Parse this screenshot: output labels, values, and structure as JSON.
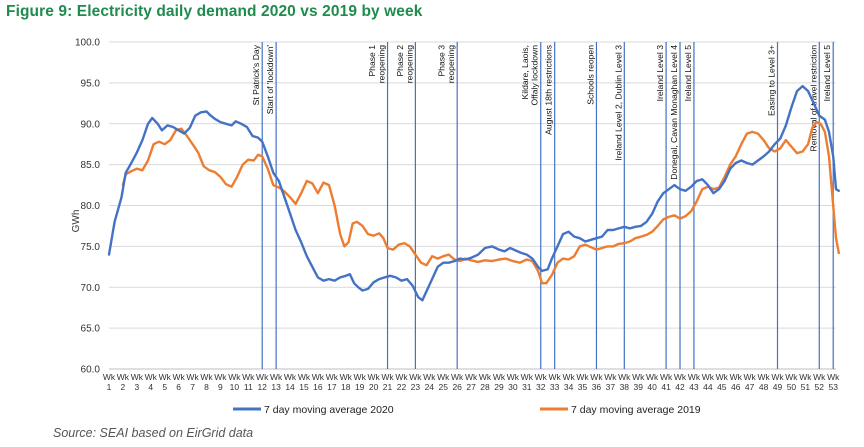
{
  "figure_title": "Figure 9:  Electricity daily demand 2020 vs 2019 by week",
  "source_note": "Source: SEAI based on EirGrid data",
  "colors": {
    "series_2020": "#4472c4",
    "series_2019": "#ed7d31",
    "title": "#1f8b4c",
    "marker_line": "#4472c4"
  },
  "chart_data": {
    "type": "line",
    "title": "Figure 9:  Electricity daily demand 2020 vs 2019 by week",
    "xlabel": "",
    "ylabel": "GWh",
    "ylim": [
      60,
      100
    ],
    "y_ticks": [
      "60.0",
      "65.0",
      "70.0",
      "75.0",
      "80.0",
      "85.0",
      "90.0",
      "95.0",
      "100.0"
    ],
    "x_prefix": "Wk",
    "x_weeks": [
      "1",
      "2",
      "3",
      "4",
      "5",
      "6",
      "7",
      "8",
      "9",
      "10",
      "11",
      "12",
      "13",
      "14",
      "15",
      "16",
      "17",
      "18",
      "19",
      "20",
      "21",
      "22",
      "23",
      "24",
      "25",
      "26",
      "27",
      "28",
      "29",
      "30",
      "31",
      "32",
      "33",
      "34",
      "35",
      "36",
      "37",
      "38",
      "39",
      "40",
      "41",
      "42",
      "43",
      "44",
      "45",
      "46",
      "47",
      "48",
      "49",
      "50",
      "51",
      "52",
      "53"
    ],
    "xlim": [
      1,
      53.2
    ],
    "legend_position": "bottom",
    "series": [
      {
        "name": "7 day moving average 2020",
        "color": "#4472c4",
        "points": [
          [
            1,
            74
          ],
          [
            1.4,
            78
          ],
          [
            1.9,
            81
          ],
          [
            2.2,
            84
          ],
          [
            2.6,
            85.2
          ],
          [
            3,
            86.5
          ],
          [
            3.4,
            88
          ],
          [
            3.8,
            90
          ],
          [
            4.1,
            90.7
          ],
          [
            4.5,
            90
          ],
          [
            4.8,
            89.2
          ],
          [
            5.2,
            89.8
          ],
          [
            5.6,
            89.6
          ],
          [
            6,
            89.2
          ],
          [
            6.4,
            88.8
          ],
          [
            6.8,
            89.5
          ],
          [
            7.2,
            91
          ],
          [
            7.6,
            91.4
          ],
          [
            8,
            91.5
          ],
          [
            8.3,
            91
          ],
          [
            8.6,
            90.6
          ],
          [
            9,
            90.2
          ],
          [
            9.4,
            90
          ],
          [
            9.8,
            89.8
          ],
          [
            10.1,
            90.3
          ],
          [
            10.5,
            90
          ],
          [
            10.9,
            89.6
          ],
          [
            11.3,
            88.5
          ],
          [
            11.7,
            88.3
          ],
          [
            12,
            87.8
          ],
          [
            12.4,
            86
          ],
          [
            12.8,
            84
          ],
          [
            13.2,
            83
          ],
          [
            13.6,
            81
          ],
          [
            14,
            79
          ],
          [
            14.4,
            77
          ],
          [
            14.8,
            75.5
          ],
          [
            15.2,
            73.8
          ],
          [
            15.6,
            72.5
          ],
          [
            16,
            71.2
          ],
          [
            16.4,
            70.8
          ],
          [
            16.8,
            71
          ],
          [
            17.2,
            70.8
          ],
          [
            17.6,
            71.2
          ],
          [
            18,
            71.4
          ],
          [
            18.3,
            71.6
          ],
          [
            18.6,
            70.5
          ],
          [
            18.9,
            70
          ],
          [
            19.2,
            69.6
          ],
          [
            19.6,
            69.8
          ],
          [
            20,
            70.6
          ],
          [
            20.4,
            71
          ],
          [
            20.8,
            71.2
          ],
          [
            21.2,
            71.4
          ],
          [
            21.6,
            71.2
          ],
          [
            22,
            70.8
          ],
          [
            22.4,
            71
          ],
          [
            22.8,
            70.2
          ],
          [
            23.2,
            68.8
          ],
          [
            23.5,
            68.4
          ],
          [
            23.8,
            69.5
          ],
          [
            24.2,
            71
          ],
          [
            24.6,
            72.5
          ],
          [
            25,
            73
          ],
          [
            25.4,
            73
          ],
          [
            25.8,
            73.2
          ],
          [
            26.2,
            73.5
          ],
          [
            26.6,
            73.4
          ],
          [
            27,
            73.6
          ],
          [
            27.5,
            74
          ],
          [
            28,
            74.8
          ],
          [
            28.5,
            75
          ],
          [
            29,
            74.6
          ],
          [
            29.4,
            74.4
          ],
          [
            29.8,
            74.8
          ],
          [
            30.2,
            74.5
          ],
          [
            30.6,
            74.2
          ],
          [
            31,
            74
          ],
          [
            31.4,
            73.5
          ],
          [
            31.8,
            72.5
          ],
          [
            32.1,
            72
          ],
          [
            32.5,
            72.2
          ],
          [
            32.8,
            73.5
          ],
          [
            33.2,
            75
          ],
          [
            33.6,
            76.5
          ],
          [
            34,
            76.8
          ],
          [
            34.4,
            76.2
          ],
          [
            34.8,
            76
          ],
          [
            35.2,
            75.6
          ],
          [
            35.6,
            75.8
          ],
          [
            36,
            76
          ],
          [
            36.4,
            76.2
          ],
          [
            36.8,
            77
          ],
          [
            37.2,
            77
          ],
          [
            37.6,
            77.2
          ],
          [
            38,
            77.4
          ],
          [
            38.4,
            77.2
          ],
          [
            38.8,
            77.4
          ],
          [
            39.2,
            77.5
          ],
          [
            39.6,
            78
          ],
          [
            40,
            79
          ],
          [
            40.4,
            80.5
          ],
          [
            40.8,
            81.5
          ],
          [
            41.2,
            82
          ],
          [
            41.6,
            82.5
          ],
          [
            42,
            82
          ],
          [
            42.4,
            81.8
          ],
          [
            42.8,
            82.3
          ],
          [
            43.2,
            83
          ],
          [
            43.6,
            83.2
          ],
          [
            44,
            82.5
          ],
          [
            44.4,
            81.5
          ],
          [
            44.8,
            82
          ],
          [
            45.2,
            83
          ],
          [
            45.6,
            84.5
          ],
          [
            46,
            85.2
          ],
          [
            46.4,
            85.5
          ],
          [
            46.8,
            85.2
          ],
          [
            47.2,
            85
          ],
          [
            47.6,
            85.5
          ],
          [
            48,
            86
          ],
          [
            48.4,
            86.6
          ],
          [
            48.8,
            87.5
          ],
          [
            49.2,
            88.2
          ],
          [
            49.6,
            89.8
          ],
          [
            50,
            92
          ],
          [
            50.4,
            94
          ],
          [
            50.8,
            94.6
          ],
          [
            51.2,
            94
          ],
          [
            51.6,
            92.5
          ],
          [
            52,
            91
          ],
          [
            52.4,
            90.5
          ],
          [
            52.7,
            89
          ],
          [
            53,
            86
          ],
          [
            53.2,
            82
          ],
          [
            53.4,
            81.8
          ]
        ]
      },
      {
        "name": "7 day moving average 2019",
        "color": "#ed7d31",
        "points": [
          [
            2,
            82.5
          ],
          [
            2.2,
            83.8
          ],
          [
            2.6,
            84.2
          ],
          [
            3,
            84.5
          ],
          [
            3.4,
            84.3
          ],
          [
            3.8,
            85.5
          ],
          [
            4.2,
            87.5
          ],
          [
            4.6,
            87.8
          ],
          [
            5,
            87.5
          ],
          [
            5.4,
            88
          ],
          [
            5.8,
            89.2
          ],
          [
            6.2,
            89.4
          ],
          [
            6.6,
            88.5
          ],
          [
            7,
            87.5
          ],
          [
            7.4,
            86.5
          ],
          [
            7.8,
            84.8
          ],
          [
            8.2,
            84.3
          ],
          [
            8.6,
            84.1
          ],
          [
            9,
            83.5
          ],
          [
            9.4,
            82.6
          ],
          [
            9.8,
            82.3
          ],
          [
            10.2,
            83.5
          ],
          [
            10.6,
            85
          ],
          [
            11,
            85.6
          ],
          [
            11.4,
            85.5
          ],
          [
            11.7,
            86.2
          ],
          [
            12,
            86
          ],
          [
            12.4,
            84.5
          ],
          [
            12.8,
            82.5
          ],
          [
            13.2,
            82.2
          ],
          [
            13.6,
            81.7
          ],
          [
            14,
            81
          ],
          [
            14.4,
            80.2
          ],
          [
            14.8,
            81.5
          ],
          [
            15.2,
            83
          ],
          [
            15.6,
            82.7
          ],
          [
            16,
            81.5
          ],
          [
            16.4,
            82.8
          ],
          [
            16.8,
            82.5
          ],
          [
            17.2,
            80
          ],
          [
            17.6,
            76.5
          ],
          [
            17.9,
            75
          ],
          [
            18.2,
            75.5
          ],
          [
            18.5,
            77.8
          ],
          [
            18.8,
            78
          ],
          [
            19.2,
            77.5
          ],
          [
            19.6,
            76.5
          ],
          [
            20,
            76.3
          ],
          [
            20.4,
            76.6
          ],
          [
            20.7,
            76
          ],
          [
            21,
            74.8
          ],
          [
            21.4,
            74.6
          ],
          [
            21.8,
            75.2
          ],
          [
            22.2,
            75.4
          ],
          [
            22.6,
            75
          ],
          [
            23,
            74
          ],
          [
            23.4,
            73
          ],
          [
            23.8,
            72.7
          ],
          [
            24.2,
            73.8
          ],
          [
            24.6,
            73.5
          ],
          [
            25,
            73.8
          ],
          [
            25.4,
            74
          ],
          [
            25.8,
            73.4
          ],
          [
            26.2,
            73.2
          ],
          [
            26.6,
            73.5
          ],
          [
            27,
            73.3
          ],
          [
            27.5,
            73.1
          ],
          [
            28,
            73.3
          ],
          [
            28.5,
            73.2
          ],
          [
            29,
            73.4
          ],
          [
            29.5,
            73.5
          ],
          [
            30,
            73.2
          ],
          [
            30.5,
            73
          ],
          [
            31,
            73.4
          ],
          [
            31.4,
            73.2
          ],
          [
            31.8,
            72
          ],
          [
            32.1,
            70.5
          ],
          [
            32.4,
            70.5
          ],
          [
            32.8,
            71.5
          ],
          [
            33.2,
            73
          ],
          [
            33.6,
            73.5
          ],
          [
            34,
            73.4
          ],
          [
            34.4,
            73.8
          ],
          [
            34.8,
            75
          ],
          [
            35.2,
            75.2
          ],
          [
            35.6,
            74.9
          ],
          [
            36,
            74.6
          ],
          [
            36.4,
            74.8
          ],
          [
            36.8,
            75
          ],
          [
            37.2,
            75
          ],
          [
            37.6,
            75.3
          ],
          [
            38,
            75.4
          ],
          [
            38.4,
            75.6
          ],
          [
            38.8,
            76
          ],
          [
            39.2,
            76.2
          ],
          [
            39.6,
            76.4
          ],
          [
            40,
            76.8
          ],
          [
            40.4,
            77.5
          ],
          [
            40.8,
            78.3
          ],
          [
            41.2,
            78.6
          ],
          [
            41.6,
            78.8
          ],
          [
            42,
            78.4
          ],
          [
            42.4,
            78.7
          ],
          [
            42.8,
            79.3
          ],
          [
            43.2,
            80.5
          ],
          [
            43.6,
            82
          ],
          [
            44,
            82.3
          ],
          [
            44.4,
            82
          ],
          [
            44.8,
            82.2
          ],
          [
            45.2,
            83.5
          ],
          [
            45.6,
            85
          ],
          [
            46,
            86
          ],
          [
            46.4,
            87.5
          ],
          [
            46.8,
            88.8
          ],
          [
            47.2,
            89
          ],
          [
            47.6,
            88.8
          ],
          [
            48,
            88
          ],
          [
            48.4,
            87
          ],
          [
            48.8,
            86.6
          ],
          [
            49.2,
            87
          ],
          [
            49.6,
            88
          ],
          [
            50,
            87.2
          ],
          [
            50.4,
            86.4
          ],
          [
            50.8,
            86.6
          ],
          [
            51.2,
            87.5
          ],
          [
            51.5,
            89.5
          ],
          [
            51.8,
            90.2
          ],
          [
            52.1,
            90
          ],
          [
            52.4,
            89
          ],
          [
            52.7,
            86
          ],
          [
            53,
            80
          ],
          [
            53.2,
            76
          ],
          [
            53.4,
            74.2
          ]
        ]
      }
    ],
    "annotations": [
      {
        "week": 12,
        "lines": [
          "St Patrick's Day"
        ]
      },
      {
        "week": 13,
        "lines": [
          "Start of 'lockdown'"
        ]
      },
      {
        "week": 21,
        "lines": [
          "Phase 1",
          "reopening"
        ]
      },
      {
        "week": 23,
        "lines": [
          "Phase 2",
          "reopening"
        ]
      },
      {
        "week": 26,
        "lines": [
          "Phase 3",
          "reopening"
        ]
      },
      {
        "week": 32,
        "lines": [
          "Kildare, Laois,",
          "Offaly lockdown"
        ]
      },
      {
        "week": 33,
        "lines": [
          "August 18th restrictions"
        ]
      },
      {
        "week": 36,
        "lines": [
          "Schools reopen"
        ]
      },
      {
        "week": 38,
        "lines": [
          "Ireland Level 2, Dublin Level 3"
        ]
      },
      {
        "week": 41,
        "lines": [
          "Ireland Level 3"
        ]
      },
      {
        "week": 42,
        "lines": [
          "Donegal, Cavan Monaghan Level 4"
        ]
      },
      {
        "week": 43,
        "lines": [
          "Ireland Level 5"
        ]
      },
      {
        "week": 49,
        "lines": [
          "Easing to Level 3+"
        ]
      },
      {
        "week": 52,
        "lines": [
          "Removal of travel restriction"
        ]
      },
      {
        "week": 53,
        "lines": [
          "Ireland Level 5"
        ]
      }
    ]
  }
}
